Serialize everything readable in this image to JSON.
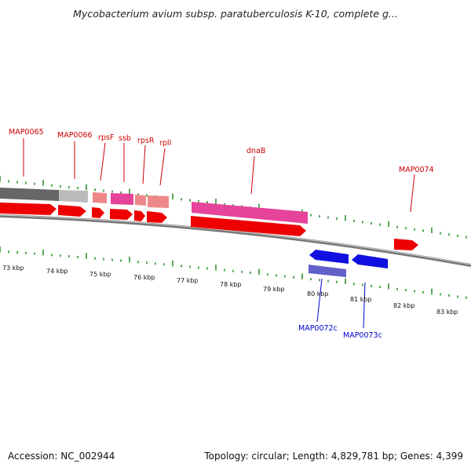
{
  "title": "Mycobacterium avium subsp. paratuberculosis K-10, complete g...",
  "footer": {
    "accession": "Accession: NC_002944",
    "summary": "Topology: circular; Length: 4,829,781 bp; Genes: 4,399"
  },
  "colors": {
    "forward_label": "#cc0000",
    "reverse_label": "#0000cc",
    "tick": "#228b22"
  },
  "axis": {
    "kbp_labels": [
      "73 kbp",
      "74 kbp",
      "75 kbp",
      "76 kbp",
      "77 kbp",
      "78 kbp",
      "79 kbp",
      "80 kbp",
      "81 kbp",
      "82 kbp",
      "83 kbp"
    ]
  },
  "genes": [
    {
      "name": "MAP0065",
      "strand": "+"
    },
    {
      "name": "MAP0066",
      "strand": "+"
    },
    {
      "name": "rpsF",
      "strand": "+"
    },
    {
      "name": "ssb",
      "strand": "+"
    },
    {
      "name": "rpsR",
      "strand": "+"
    },
    {
      "name": "rplI",
      "strand": "+"
    },
    {
      "name": "dnaB",
      "strand": "+"
    },
    {
      "name": "MAP0074",
      "strand": "+"
    },
    {
      "name": "MAP0072c",
      "strand": "-"
    },
    {
      "name": "MAP0073c",
      "strand": "-"
    }
  ]
}
